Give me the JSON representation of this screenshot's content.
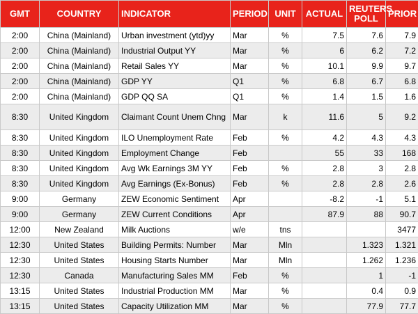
{
  "table": {
    "header": [
      "GMT",
      "COUNTRY",
      "INDICATOR",
      "PERIOD",
      "UNIT",
      "ACTUAL",
      "REUTERS POLL",
      "PRIOR"
    ],
    "rows": [
      [
        "2:00",
        "China (Mainland)",
        "Urban investment (ytd)yy",
        "Mar",
        "%",
        "7.5",
        "7.6",
        "7.9"
      ],
      [
        "2:00",
        "China (Mainland)",
        "Industrial Output YY",
        "Mar",
        "%",
        "6",
        "6.2",
        "7.2"
      ],
      [
        "2:00",
        "China (Mainland)",
        "Retail Sales YY",
        "Mar",
        "%",
        "10.1",
        "9.9",
        "9.7"
      ],
      [
        "2:00",
        "China (Mainland)",
        "GDP YY",
        "Q1",
        "%",
        "6.8",
        "6.7",
        "6.8"
      ],
      [
        "2:00",
        "China (Mainland)",
        "GDP QQ SA",
        "Q1",
        "%",
        "1.4",
        "1.5",
        "1.6"
      ],
      [
        "8:30",
        "United Kingdom",
        "Claimant Count Unem Chng",
        "Mar",
        "k",
        "11.6",
        "5",
        "9.2"
      ],
      [
        "8:30",
        "United Kingdom",
        "ILO Unemployment Rate",
        "Feb",
        "%",
        "4.2",
        "4.3",
        "4.3"
      ],
      [
        "8:30",
        "United Kingdom",
        "Employment Change",
        "Feb",
        null,
        "55",
        "33",
        "168"
      ],
      [
        "8:30",
        "United Kingdom",
        "Avg Wk Earnings 3M YY",
        "Feb",
        "%",
        "2.8",
        "3",
        "2.8"
      ],
      [
        "8:30",
        "United Kingdom",
        "Avg Earnings (Ex-Bonus)",
        "Feb",
        "%",
        "2.8",
        "2.8",
        "2.6"
      ],
      [
        "9:00",
        "Germany",
        "ZEW Economic Sentiment",
        "Apr",
        null,
        "-8.2",
        "-1",
        "5.1"
      ],
      [
        "9:00",
        "Germany",
        "ZEW Current Conditions",
        "Apr",
        null,
        "87.9",
        "88",
        "90.7"
      ],
      [
        "12:00",
        "New Zealand",
        "Milk Auctions",
        "w/e",
        "tns",
        null,
        null,
        "3477"
      ],
      [
        "12:30",
        "United States",
        "Building Permits: Number",
        "Mar",
        "Mln",
        null,
        "1.323",
        "1.321"
      ],
      [
        "12:30",
        "United States",
        "Housing Starts Number",
        "Mar",
        "Mln",
        null,
        "1.262",
        "1.236"
      ],
      [
        "12:30",
        "Canada",
        "Manufacturing Sales MM",
        "Feb",
        "%",
        null,
        "1",
        "-1"
      ],
      [
        "13:15",
        "United States",
        "Industrial Production MM",
        "Mar",
        "%",
        null,
        "0.4",
        "0.9"
      ],
      [
        "13:15",
        "United States",
        "Capacity Utilization MM",
        "Mar",
        "%",
        null,
        "77.9",
        "77.7"
      ]
    ]
  }
}
